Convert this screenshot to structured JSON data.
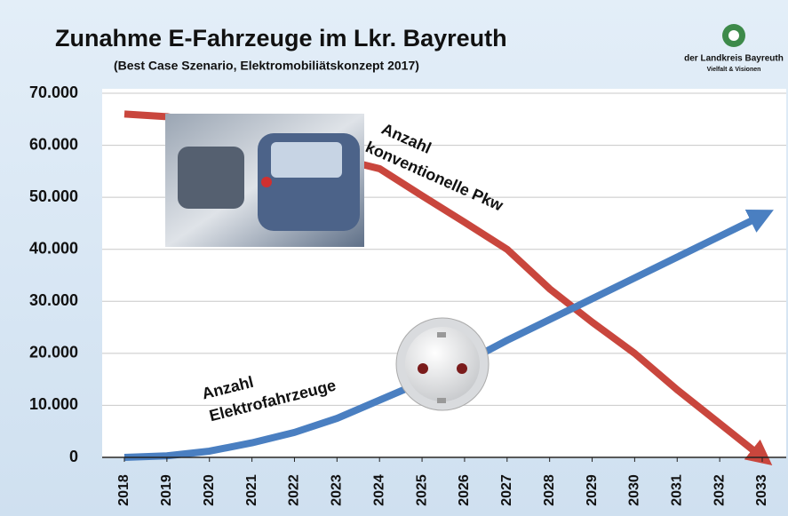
{
  "chart_data": {
    "type": "line",
    "title": "Zunahme E-Fahrzeuge im Lkr. Bayreuth",
    "subtitle": "(Best Case Szenario, Elektromobiliätskonzept 2017)",
    "logo": {
      "name": "der Landkreis Bayreuth",
      "slogan": "Vielfalt & Visionen"
    },
    "categories": [
      "2018",
      "2019",
      "2020",
      "2021",
      "2022",
      "2023",
      "2024",
      "2025",
      "2026",
      "2027",
      "2028",
      "2029",
      "2030",
      "2031",
      "2032",
      "2033"
    ],
    "series": [
      {
        "color": "#c9463d",
        "values": [
          66000,
          65500,
          64000,
          62000,
          60000,
          57500,
          55500,
          50300,
          45200,
          40000,
          32400,
          26000,
          20000,
          13000,
          6500,
          0
        ]
      },
      {
        "color": "#4a7fc1",
        "values": [
          0,
          300,
          1200,
          2800,
          4800,
          7500,
          11000,
          14500,
          18200,
          22500,
          26500,
          30500,
          34500,
          38500,
          42500,
          46500
        ]
      }
    ],
    "annotations": [
      {
        "lines": [
          "Anzahl",
          "konventionelle Pkw"
        ]
      },
      {
        "lines": [
          "Anzahl",
          "Elektrofahrzeuge"
        ]
      }
    ],
    "ylim": [
      0,
      70000
    ],
    "yticks": [
      0,
      {
        "value": 10000,
        "label": "10.000"
      },
      {
        "value": 20000,
        "label": "20.000"
      },
      {
        "value": 30000,
        "label": "30.000"
      },
      {
        "value": 40000,
        "label": "40.000"
      },
      {
        "value": 50000,
        "label": "50.000"
      },
      {
        "value": 60000,
        "label": "60.000"
      },
      {
        "value": 70000,
        "label": "70.000"
      }
    ],
    "grid": true
  }
}
